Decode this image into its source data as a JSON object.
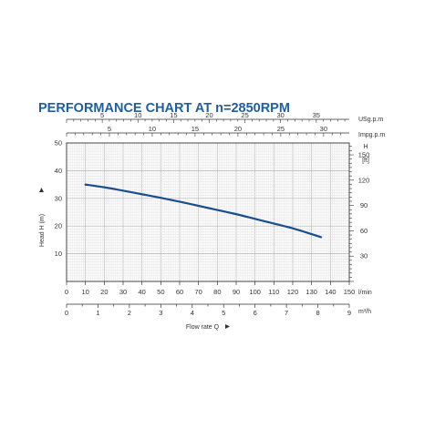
{
  "chart_data": {
    "type": "line",
    "title": "PERFORMANCE CHART AT n=2850RPM",
    "title_color": "#1f5fa0",
    "curve_color": "#1a4d8c",
    "grid": true,
    "x_lmin": {
      "label": "Flow rate Q",
      "unit": "l/min",
      "range": [
        0,
        150
      ],
      "ticks": [
        0,
        10,
        20,
        30,
        40,
        50,
        60,
        70,
        80,
        90,
        100,
        110,
        120,
        130,
        140,
        150
      ]
    },
    "x_m3h": {
      "unit": "m³/h",
      "range": [
        0,
        9
      ],
      "ticks": [
        0,
        1,
        2,
        3,
        4,
        5,
        6,
        7,
        8,
        9
      ]
    },
    "x_usgpm": {
      "unit": "USg.p.m",
      "ticks": [
        5,
        10,
        15,
        20,
        25,
        30,
        35
      ]
    },
    "x_impgpm": {
      "unit": "Impg.p.m",
      "ticks": [
        5,
        10,
        15,
        20,
        25,
        30
      ]
    },
    "y_m": {
      "label": "Head H (m)",
      "range": [
        0,
        50
      ],
      "ticks": [
        10,
        20,
        30,
        40,
        50
      ]
    },
    "y_ft": {
      "label_top": "H",
      "label_bottom": "[ft]",
      "ticks": [
        30,
        60,
        90,
        120,
        150
      ]
    },
    "series": [
      {
        "x": [
          10,
          20,
          30,
          40,
          50,
          60,
          70,
          80,
          90,
          100,
          110,
          120,
          130,
          135
        ],
        "y": [
          35,
          34,
          32.8,
          31.5,
          30.2,
          28.8,
          27.3,
          25.8,
          24.3,
          22.6,
          20.9,
          19.2,
          17.1,
          16
        ]
      }
    ]
  }
}
